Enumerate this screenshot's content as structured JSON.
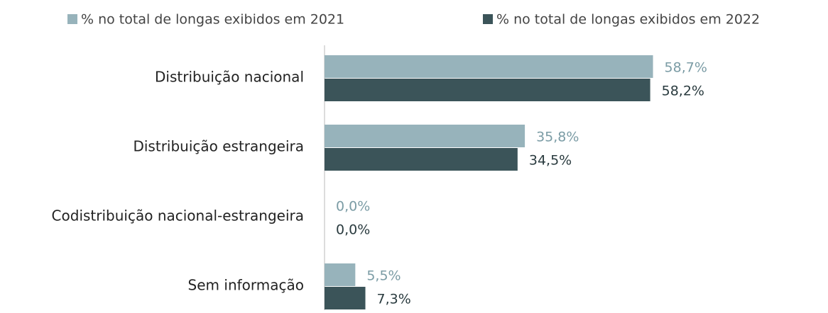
{
  "chart_data": {
    "type": "hbar",
    "categories": [
      "Distribuição nacional",
      "Distribuição estrangeira",
      "Codistribuição nacional-estrangeira",
      "Sem informação"
    ],
    "series": [
      {
        "name": "% no total de longas exibidos em 2021",
        "color": "#97b3bb",
        "label_color": "#7b9ca5",
        "values": [
          58.7,
          35.8,
          0.0,
          5.5
        ],
        "value_labels": [
          "58,7%",
          "35,8%",
          "0,0%",
          "5,5%"
        ]
      },
      {
        "name": "% no total de longas exibidos em 2022",
        "color": "#3b5459",
        "label_color": "#2a3b3f",
        "values": [
          58.2,
          34.5,
          0.0,
          7.3
        ],
        "value_labels": [
          "58,2%",
          "34,5%",
          "0,0%",
          "7,3%"
        ]
      }
    ]
  }
}
